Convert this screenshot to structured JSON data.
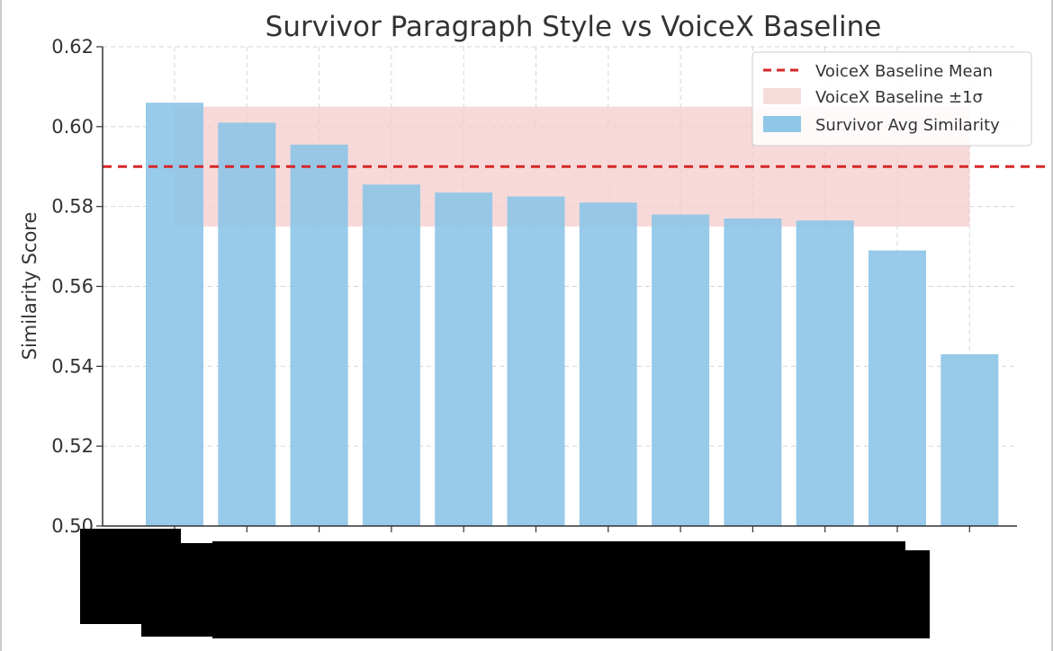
{
  "chart_data": {
    "type": "bar",
    "title": "Survivor Paragraph Style vs VoiceX Baseline",
    "xlabel": "",
    "ylabel": "Similarity Score",
    "ylim": [
      0.5,
      0.62
    ],
    "yticks": [
      "0.50",
      "0.52",
      "0.54",
      "0.56",
      "0.58",
      "0.60",
      "0.62"
    ],
    "grid": true,
    "legend_position": "top-right",
    "categories": [
      "",
      "",
      "",
      "",
      "",
      "",
      "",
      "",
      "",
      "",
      "",
      ""
    ],
    "series": [
      {
        "name": "Survivor Avg Similarity",
        "color": "#8fc6e7",
        "values": [
          0.606,
          0.601,
          0.5955,
          0.5855,
          0.5835,
          0.5825,
          0.581,
          0.578,
          0.577,
          0.5765,
          0.569,
          0.543
        ]
      }
    ],
    "baseline": {
      "mean_label": "VoiceX Baseline Mean",
      "mean": 0.59,
      "band_label": "VoiceX Baseline ±1σ",
      "band": [
        0.575,
        0.605
      ],
      "line_color": "#d62728",
      "band_color": "#f4cccc"
    }
  }
}
